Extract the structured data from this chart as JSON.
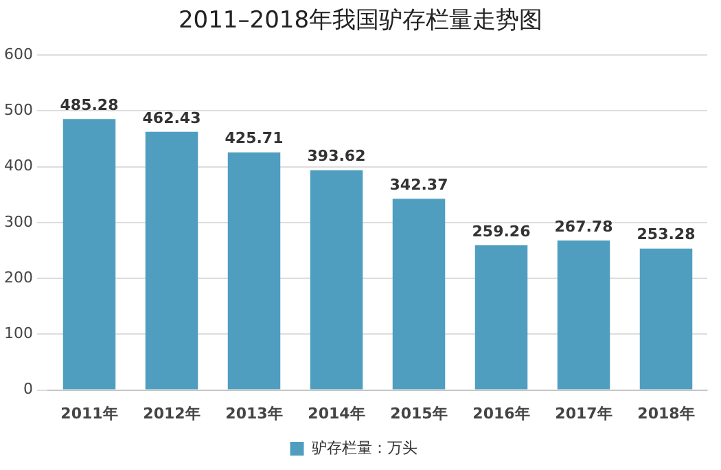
{
  "chart_data": {
    "type": "bar",
    "title": "2011–2018年我国驴存栏量走势图",
    "categories": [
      "2011年",
      "2012年",
      "2013年",
      "2014年",
      "2015年",
      "2016年",
      "2017年",
      "2018年"
    ],
    "series": [
      {
        "name": "驴存栏量：万头",
        "color": "#4f9ec0",
        "values": [
          485.28,
          462.43,
          425.71,
          393.62,
          342.37,
          259.26,
          267.78,
          253.28
        ]
      }
    ],
    "ylim": [
      0,
      600
    ],
    "yticks": [
      0,
      100,
      200,
      300,
      400,
      500,
      600
    ],
    "grid": "y",
    "legend": "bottom",
    "data_labels": true
  }
}
